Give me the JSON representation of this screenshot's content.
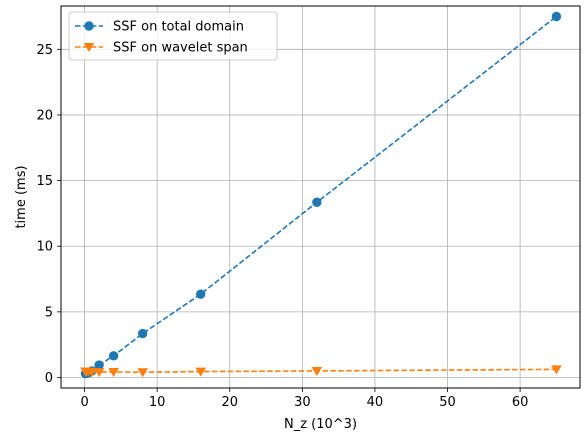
{
  "chart_data": {
    "type": "line",
    "title": "",
    "xlabel": "N_z (10^3)",
    "ylabel": "time (ms)",
    "xlim": [
      -3.25,
      68.25
    ],
    "ylim": [
      -0.8,
      28.3
    ],
    "xticks": [
      0,
      10,
      20,
      30,
      40,
      50,
      60
    ],
    "yticks": [
      0,
      5,
      10,
      15,
      20,
      25
    ],
    "grid": true,
    "legend_position": "top-left",
    "series": [
      {
        "name": "SSF on total domain",
        "color": "#1f77b4",
        "marker": "circle",
        "line_style": "dashed",
        "x": [
          0.125,
          0.25,
          0.5,
          1,
          2,
          4,
          8,
          16,
          32,
          65
        ],
        "y": [
          0.3,
          0.32,
          0.35,
          0.5,
          0.95,
          1.65,
          3.35,
          6.35,
          13.35,
          27.5
        ]
      },
      {
        "name": "SSF on wavelet span",
        "color": "#ff7f0e",
        "marker": "triangle-down",
        "line_style": "dashed",
        "x": [
          0.125,
          0.25,
          0.5,
          1,
          2,
          4,
          8,
          16,
          32,
          65
        ],
        "y": [
          0.45,
          0.45,
          0.45,
          0.42,
          0.42,
          0.42,
          0.4,
          0.45,
          0.5,
          0.62
        ]
      }
    ]
  }
}
